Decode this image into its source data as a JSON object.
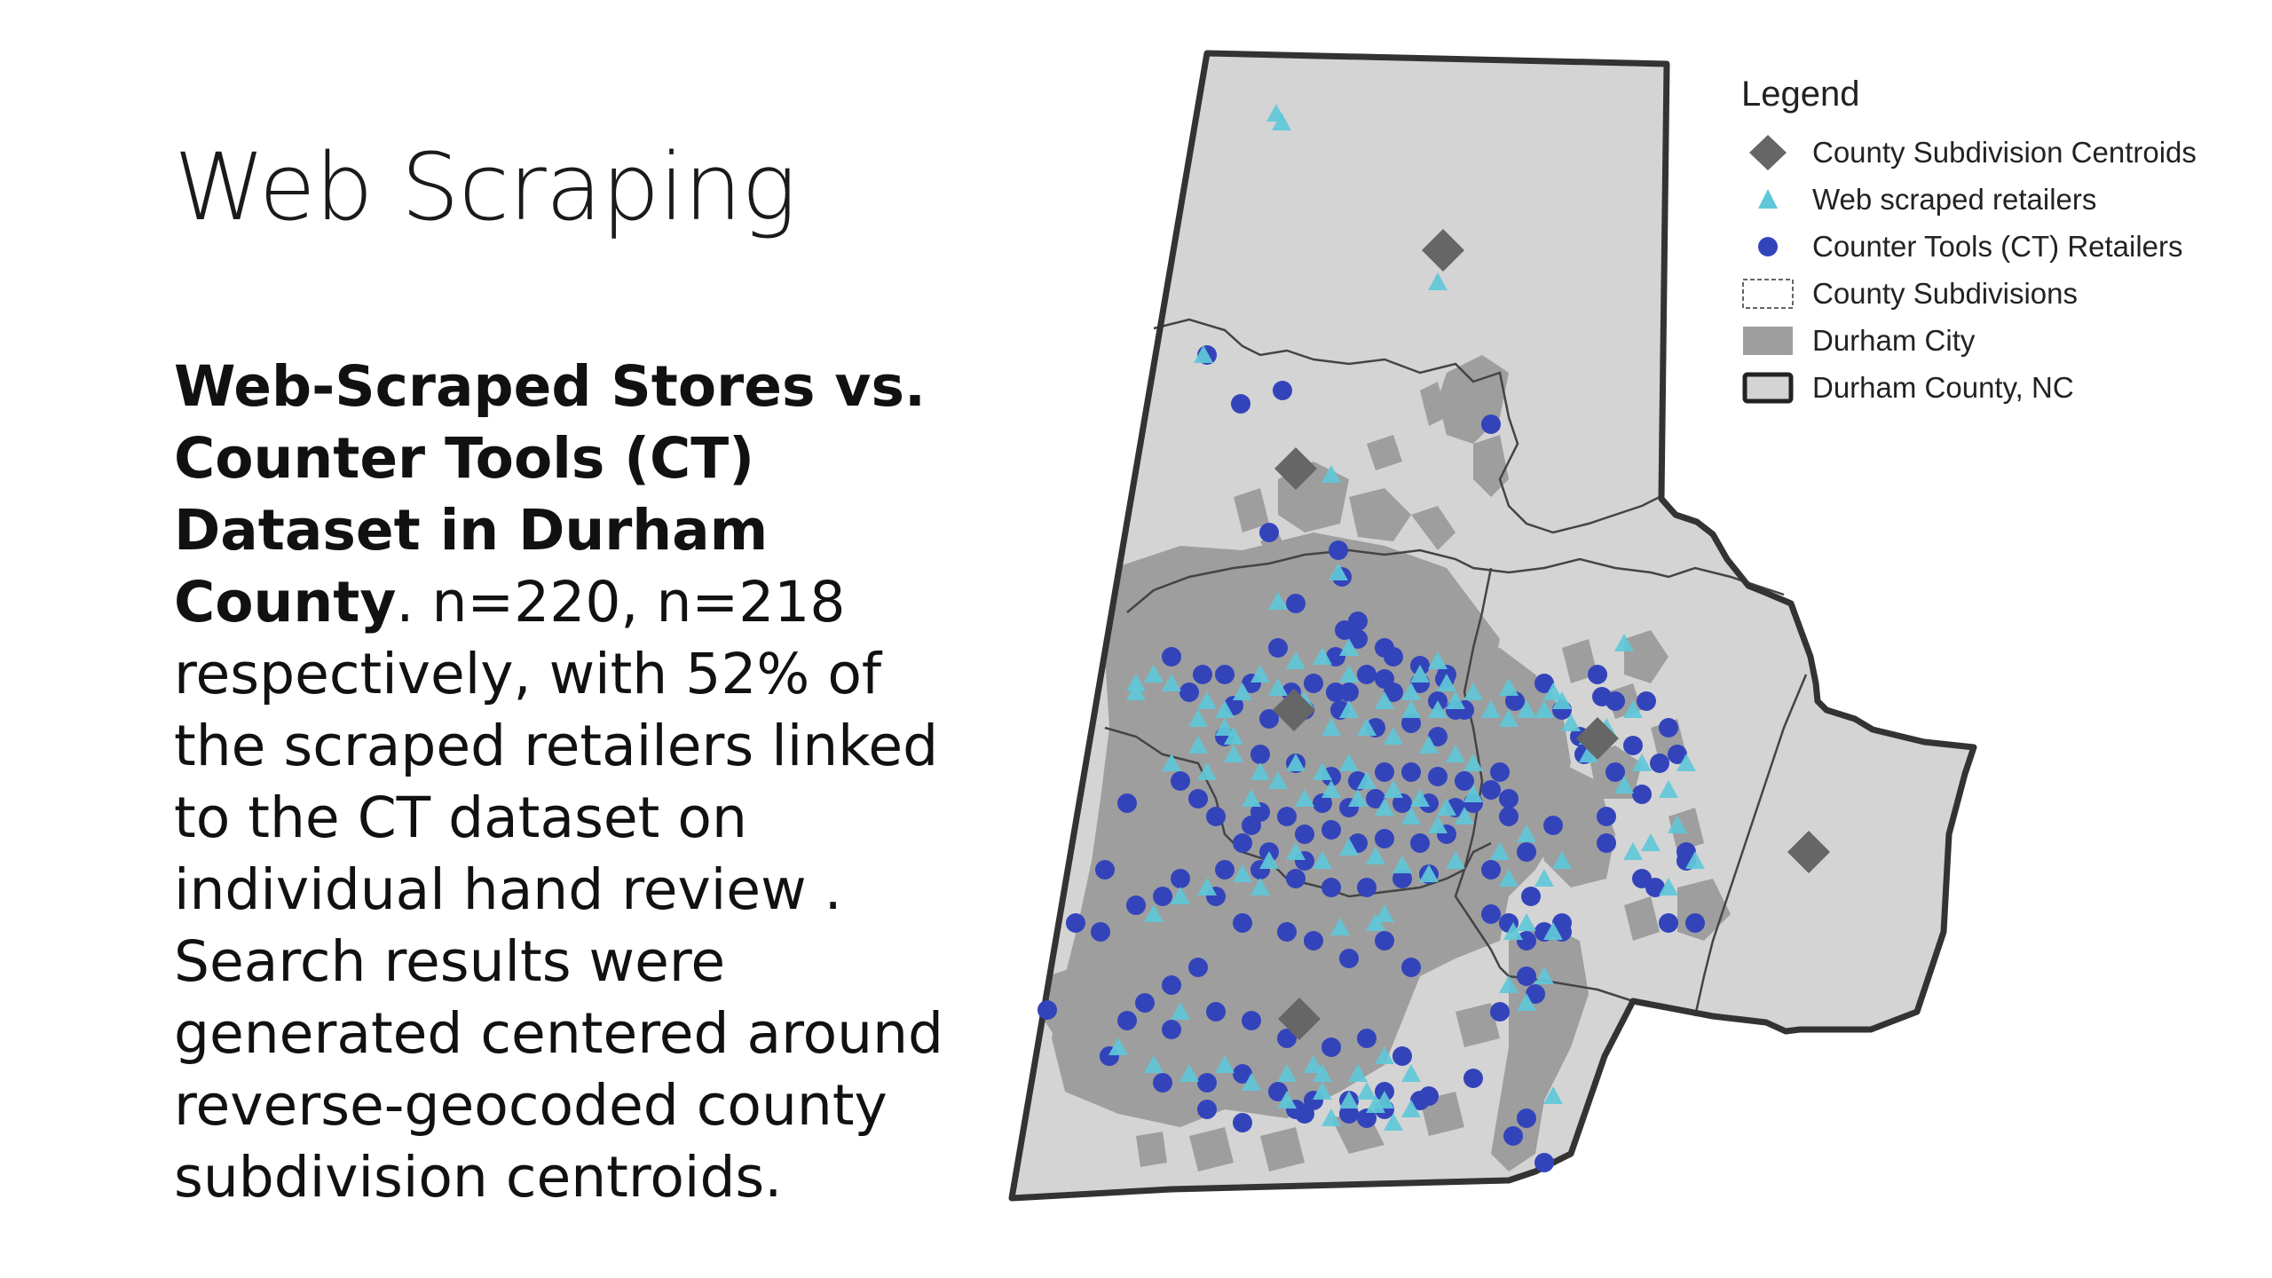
{
  "slide": {
    "title": "Web Scraping",
    "body": {
      "bold_lead": "Web-Scraped Stores vs. Counter Tools (CT) Dataset in Durham County",
      "text": ". n=220, n=218 respectively, with 52% of the scraped retailers linked to the CT dataset on individual hand review . Search results were generated centered around reverse-geocoded county subdivision centroids."
    }
  },
  "map": {
    "legend": {
      "title": "Legend",
      "items": [
        {
          "label": "County Subdivision Centroids",
          "symbol": "diamond",
          "color": "#666666"
        },
        {
          "label": "Web scraped retailers",
          "symbol": "triangle",
          "color": "#5fc8d8"
        },
        {
          "label": "Counter Tools (CT) Retailers",
          "symbol": "circle",
          "color": "#3344bb"
        },
        {
          "label": "County Subdivisions",
          "symbol": "dashed-box",
          "color": "#888888"
        },
        {
          "label": "Durham City",
          "symbol": "filled-box",
          "color": "#9e9e9e"
        },
        {
          "label": "Durham County, NC",
          "symbol": "outlined-box",
          "color": "#d4d4d4"
        }
      ]
    },
    "colors": {
      "county_fill": "#d4d4d4",
      "county_outline": "#333333",
      "city_fill": "#9e9e9e",
      "subdivision_line": "#444444",
      "centroid": "#666666",
      "web_scraped": "#5fc8d8",
      "counter_tools": "#3344bb"
    }
  }
}
